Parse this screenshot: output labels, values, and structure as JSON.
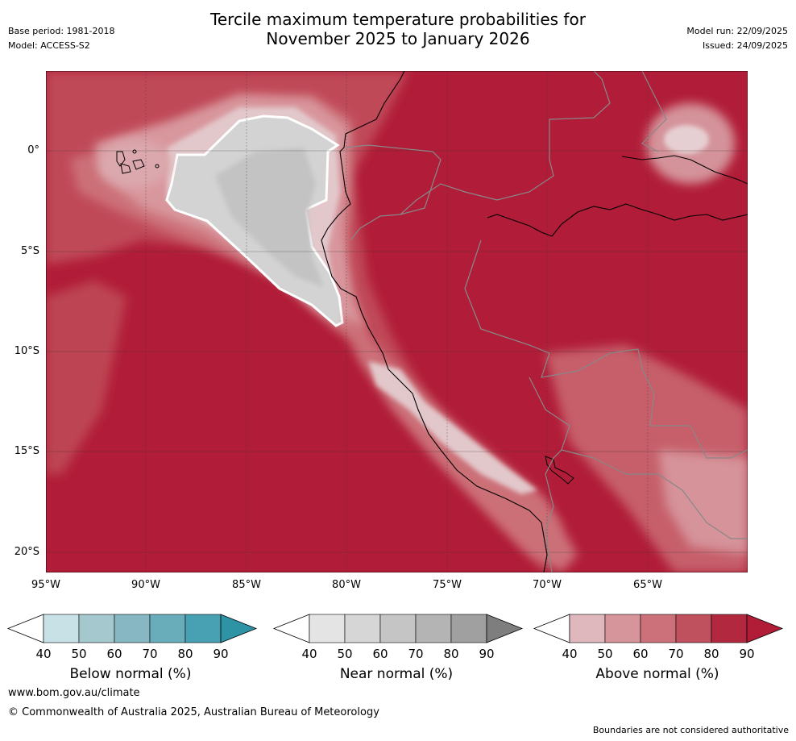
{
  "title": {
    "line1": "Tercile maximum temperature probabilities for",
    "line2": "November 2025 to January 2026"
  },
  "meta_left": {
    "base_period": "Base period: 1981-2018",
    "model": "Model: ACCESS-S2"
  },
  "meta_right": {
    "model_run": "Model run: 22/09/2025",
    "issued": "Issued: 24/09/2025"
  },
  "map": {
    "lat_labels": [
      "0°",
      "5°S",
      "10°S",
      "15°S",
      "20°S"
    ],
    "lon_labels": [
      "95°W",
      "90°W",
      "85°W",
      "80°W",
      "75°W",
      "70°W",
      "65°W"
    ]
  },
  "colorbars": [
    {
      "label": "Below normal (%)",
      "ticks": [
        "40",
        "50",
        "60",
        "70",
        "80",
        "90"
      ],
      "colors": [
        "#c7e1e6",
        "#a5c8cf",
        "#87b7c3",
        "#6aadba",
        "#47a1b3",
        "#2f93a6"
      ]
    },
    {
      "label": "Near normal (%)",
      "ticks": [
        "40",
        "50",
        "60",
        "70",
        "80",
        "90"
      ],
      "colors": [
        "#e4e4e4",
        "#d6d6d6",
        "#c5c5c5",
        "#b4b4b4",
        "#a0a0a0",
        "#7e7e7e"
      ]
    },
    {
      "label": "Above normal (%)",
      "ticks": [
        "40",
        "50",
        "60",
        "70",
        "80",
        "90"
      ],
      "colors": [
        "#deb8bd",
        "#d6959b",
        "#cc7079",
        "#bf515e",
        "#b1283f",
        "#b11c36"
      ]
    }
  ],
  "footer": {
    "url": "www.bom.gov.au/climate",
    "copyright": "© Commonwealth of Australia 2025, Australian Bureau of Meteorology",
    "disclaimer": "Boundaries are not considered authoritative"
  }
}
